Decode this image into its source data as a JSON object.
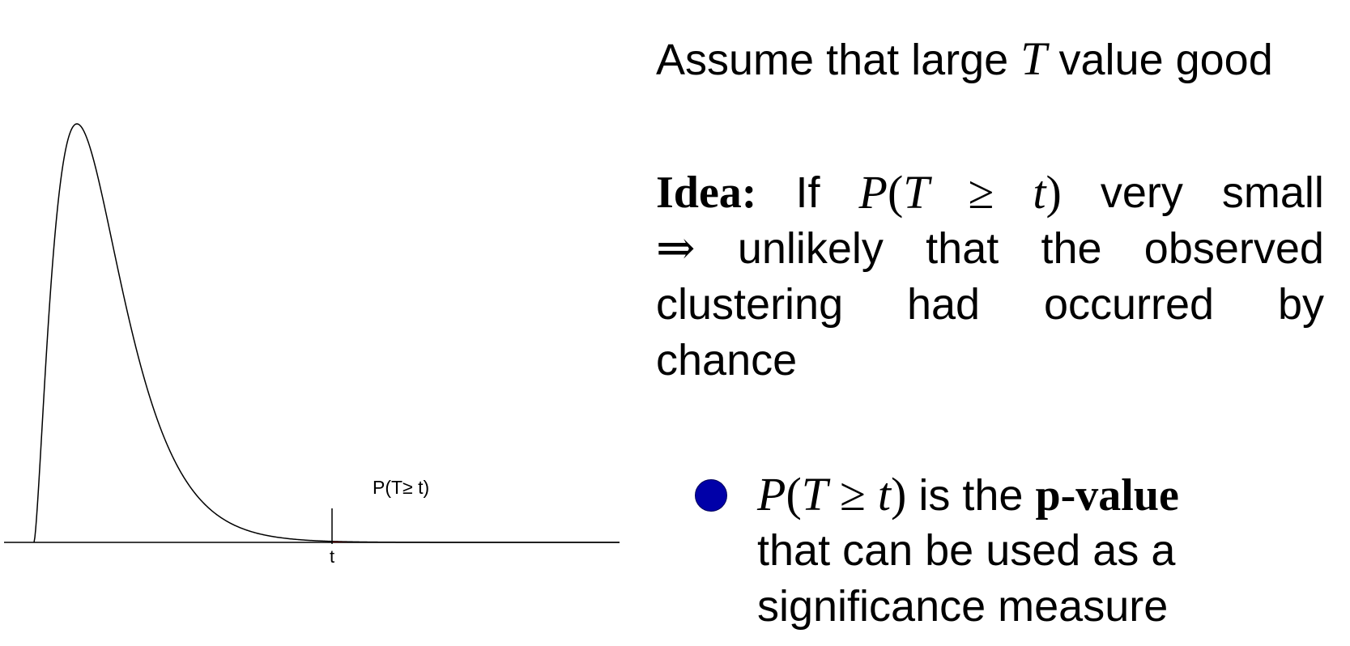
{
  "diagram": {
    "region_label": "P(T≥ t)",
    "t_label": "t",
    "fill_color": "#ff0000"
  },
  "text": {
    "assume": {
      "before": "Assume that large",
      "var": "T",
      "after": "value good"
    },
    "idea": {
      "heading": "Idea:",
      "if": "If",
      "P": "P",
      "open": "(",
      "T": "T",
      "geq": "≥",
      "t": "t",
      "close": ")",
      "very": "very",
      "small": "small",
      "implies": "⇒",
      "unlikely": "unlikely",
      "that": "that",
      "the": "the",
      "observed": "observed",
      "clustering": "clustering",
      "had": "had",
      "occurred": "occurred",
      "by": "by",
      "chance": "chance"
    },
    "bullet": {
      "P": "P",
      "open": "(",
      "T": "T",
      "geq": "≥",
      "t": "t",
      "close": ")",
      "is_the": "is the",
      "pvalue": "p-value",
      "line2": "that can be used as a",
      "line3": "significance measure"
    }
  },
  "colors": {
    "bullet": "#0000a8"
  }
}
